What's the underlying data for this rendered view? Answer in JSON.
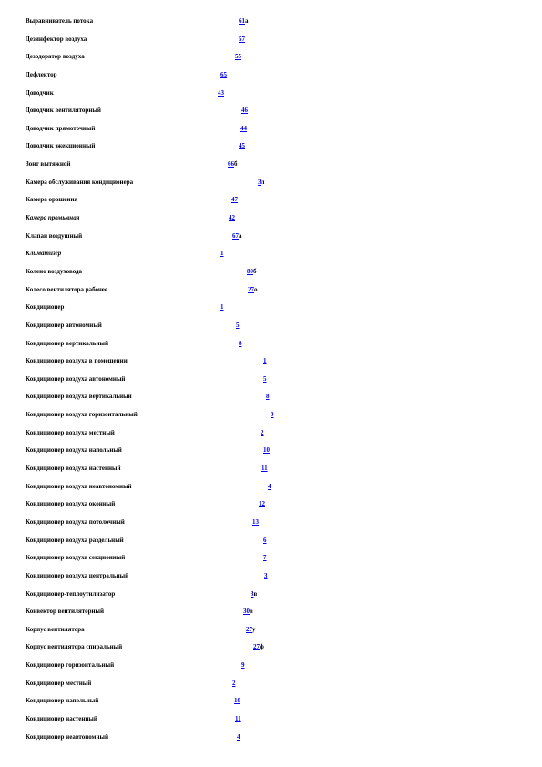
{
  "entries": [
    {
      "term": "Выравниватель потока",
      "page": "61",
      "suffix": "а"
    },
    {
      "term": "Дезинфектор воздуха",
      "page": "57",
      "suffix": ""
    },
    {
      "term": "Дезодоратор воздуха",
      "page": "55",
      "suffix": ""
    },
    {
      "term": "Дефлектор",
      "page": "65",
      "suffix": ""
    },
    {
      "term": "Доводчик",
      "page": "43",
      "suffix": ""
    },
    {
      "term": "Доводчик вентиляторный",
      "page": "46",
      "suffix": ""
    },
    {
      "term": "Доводчик прямоточный",
      "page": "44",
      "suffix": ""
    },
    {
      "term": "Доводчик эжекционный",
      "page": "45",
      "suffix": ""
    },
    {
      "term": "Зонт вытяжной",
      "page": "66",
      "suffix": "б"
    },
    {
      "term": "Камера обслуживания кондиционера",
      "page": "3",
      "suffix": "л"
    },
    {
      "term": "Камера орошения",
      "page": "47",
      "suffix": ""
    },
    {
      "term": "Камера промывная",
      "page": "42",
      "suffix": "",
      "italic": true
    },
    {
      "term": "Клапан воздушный",
      "page": "67",
      "suffix": "а"
    },
    {
      "term": "Климатизер",
      "page": "1",
      "suffix": "",
      "italic": true
    },
    {
      "term": "Колено воздуховода",
      "page": "80",
      "suffix": "б"
    },
    {
      "term": "Колесо вентилятора рабочее",
      "page": "27",
      "suffix": "о"
    },
    {
      "term": "Кондиционер",
      "page": "1",
      "suffix": ""
    },
    {
      "term": "Кондиционер автономный",
      "page": "5",
      "suffix": ""
    },
    {
      "term": "Кондиционер вертикальный",
      "page": "8",
      "suffix": ""
    },
    {
      "term": "Кондиционер воздуха в помещении",
      "page": "1",
      "suffix": ""
    },
    {
      "term": "Кондиционер воздуха автономный",
      "page": "5",
      "suffix": ""
    },
    {
      "term": "Кондиционер воздуха вертикальный",
      "page": "8",
      "suffix": ""
    },
    {
      "term": "Кондиционер воздуха горизонтальный",
      "page": "9",
      "suffix": ""
    },
    {
      "term": "Кондиционер воздуха местный",
      "page": "2",
      "suffix": ""
    },
    {
      "term": "Кондиционер воздуха напольный",
      "page": "10",
      "suffix": ""
    },
    {
      "term": "Кондиционер воздуха настенный",
      "page": "11",
      "suffix": ""
    },
    {
      "term": "Кондиционер воздуха неавтономный",
      "page": "4",
      "suffix": ""
    },
    {
      "term": "Кондиционер воздуха оконный",
      "page": "12",
      "suffix": ""
    },
    {
      "term": "Кондиционер воздуха потолочный",
      "page": "13",
      "suffix": ""
    },
    {
      "term": "Кондиционер воздуха раздельный",
      "page": "6",
      "suffix": ""
    },
    {
      "term": "Кондиционер воздуха секционный",
      "page": "7",
      "suffix": ""
    },
    {
      "term": "Кондиционер воздуха центральный",
      "page": "3",
      "suffix": ""
    },
    {
      "term": "Кондиционер-теплоутилизатор",
      "page": "3",
      "suffix": "в"
    },
    {
      "term": "Конвектор вентиляторный",
      "page": "30",
      "suffix": "в"
    },
    {
      "term": "Корпус вентилятора",
      "page": "27",
      "suffix": "у"
    },
    {
      "term": "Корпус вентилятора спиральный",
      "page": "27",
      "suffix": "ф"
    },
    {
      "term": "Кондиционер горизонтальный",
      "page": "9",
      "suffix": ""
    },
    {
      "term": "Кондиционер местный",
      "page": "2",
      "suffix": ""
    },
    {
      "term": "Кондиционер напольный",
      "page": "10",
      "suffix": ""
    },
    {
      "term": "Кондиционер настенный",
      "page": "11",
      "suffix": ""
    },
    {
      "term": "Кондиционер неавтономный",
      "page": "4",
      "suffix": ""
    }
  ]
}
